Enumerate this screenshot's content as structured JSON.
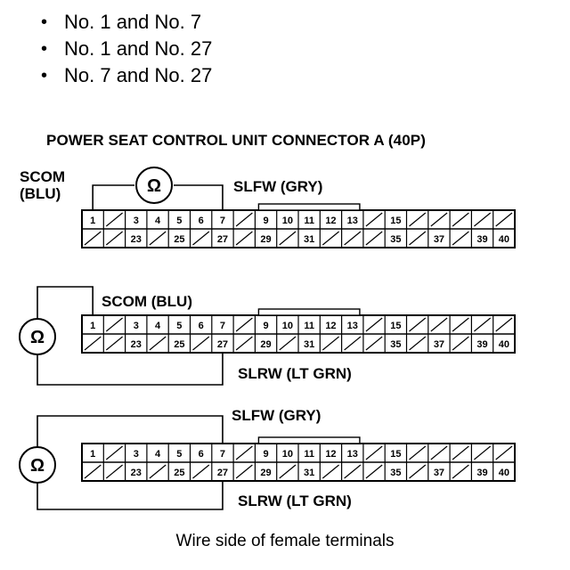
{
  "bullets": [
    "No. 1 and No. 7",
    "No. 1 and No. 27",
    "No. 7 and No. 27"
  ],
  "title": "POWER SEAT CONTROL UNIT CONNECTOR A (40P)",
  "caption": "Wire side of female terminals",
  "ohm_symbol": "Ω",
  "connector": {
    "top_row": [
      "1",
      "",
      "3",
      "4",
      "5",
      "6",
      "7",
      "",
      "9",
      "10",
      "11",
      "12",
      "13",
      "",
      "15",
      "",
      "",
      "",
      "",
      ""
    ],
    "bottom_row": [
      "",
      "",
      "23",
      "",
      "25",
      "",
      "27",
      "",
      "29",
      "",
      "31",
      "",
      "",
      "",
      "35",
      "",
      "37",
      "",
      "39",
      "40"
    ]
  },
  "diagrams": [
    {
      "labels": {
        "scom": "SCOM\n(BLU)",
        "slfw": "SLFW (GRY)"
      }
    },
    {
      "labels": {
        "scom": "SCOM (BLU)",
        "slrw": "SLRW (LT GRN)"
      }
    },
    {
      "labels": {
        "slfw": "SLFW (GRY)",
        "slrw": "SLRW (LT GRN)"
      }
    }
  ]
}
